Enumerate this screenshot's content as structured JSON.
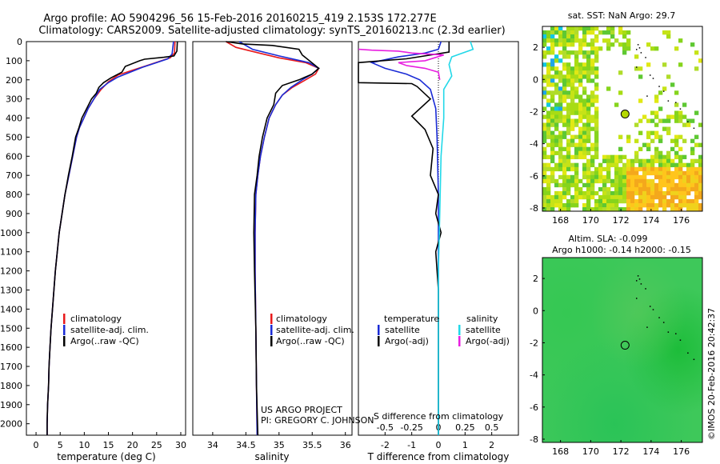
{
  "header": {
    "line1": "Argo profile: AO 5904296_56 15-Feb-2016 20160215_419 2.153S 172.277E",
    "line2": "Climatology: CARS2009. Satellite-adjusted climatology: synTS_20160213.nc (2.3d earlier)"
  },
  "colors": {
    "clim": "#e8191b",
    "sat": "#1a2bd6",
    "argo": "#000000",
    "sat_s": "#22d8e8",
    "argo_s": "#e81ee0"
  },
  "depth_axis": {
    "ticks": [
      0,
      100,
      200,
      300,
      400,
      500,
      600,
      700,
      800,
      900,
      1000,
      1100,
      1200,
      1300,
      1400,
      1500,
      1600,
      1700,
      1800,
      1900,
      2000
    ],
    "range": [
      0,
      2060
    ]
  },
  "chart_data": [
    {
      "type": "line",
      "id": "temperature",
      "xlabel": "temperature (deg C)",
      "xlim": [
        -2,
        31
      ],
      "xticks": [
        0,
        5,
        10,
        15,
        20,
        25,
        30
      ],
      "ylim": [
        0,
        2060
      ],
      "legend": [
        "climatology",
        "satellite-adj. clim.",
        "Argo(..raw -QC)"
      ],
      "series": [
        {
          "name": "climatology",
          "color_key": "clim",
          "points": [
            [
              28.8,
              0
            ],
            [
              28.7,
              60
            ],
            [
              27.8,
              85
            ],
            [
              26,
              100
            ],
            [
              23,
              125
            ],
            [
              20,
              150
            ],
            [
              17,
              175
            ],
            [
              15,
              210
            ],
            [
              13.5,
              250
            ],
            [
              12,
              300
            ],
            [
              10.8,
              350
            ],
            [
              9.9,
              400
            ],
            [
              9,
              450
            ],
            [
              8.4,
              500
            ],
            [
              7.6,
              600
            ],
            [
              6.8,
              700
            ],
            [
              6,
              800
            ],
            [
              5.4,
              900
            ],
            [
              4.8,
              1000
            ],
            [
              4.4,
              1100
            ],
            [
              4,
              1200
            ],
            [
              3.7,
              1300
            ],
            [
              3.4,
              1400
            ],
            [
              3.1,
              1500
            ],
            [
              2.9,
              1600
            ],
            [
              2.7,
              1700
            ],
            [
              2.6,
              1800
            ],
            [
              2.4,
              1900
            ],
            [
              2.3,
              2000
            ],
            [
              2.3,
              2060
            ]
          ]
        },
        {
          "name": "satellite-adj. clim.",
          "color_key": "sat",
          "points": [
            [
              28.5,
              0
            ],
            [
              28.2,
              65
            ],
            [
              27.3,
              90
            ],
            [
              25,
              110
            ],
            [
              22,
              135
            ],
            [
              19.5,
              160
            ],
            [
              17,
              185
            ],
            [
              15,
              215
            ],
            [
              13.2,
              250
            ],
            [
              12,
              300
            ],
            [
              10.8,
              350
            ],
            [
              9.9,
              400
            ],
            [
              9,
              450
            ],
            [
              8.4,
              500
            ],
            [
              7.6,
              600
            ],
            [
              6.8,
              700
            ],
            [
              6,
              800
            ],
            [
              5.4,
              900
            ],
            [
              4.8,
              1000
            ],
            [
              4.4,
              1100
            ],
            [
              4,
              1200
            ],
            [
              3.7,
              1300
            ],
            [
              3.4,
              1400
            ],
            [
              3.1,
              1500
            ],
            [
              2.9,
              1600
            ],
            [
              2.7,
              1700
            ],
            [
              2.6,
              1800
            ],
            [
              2.4,
              1900
            ],
            [
              2.3,
              2000
            ],
            [
              2.3,
              2060
            ]
          ]
        },
        {
          "name": "Argo(..raw -QC)",
          "color_key": "argo",
          "points": [
            [
              29.3,
              0
            ],
            [
              29.2,
              50
            ],
            [
              28.6,
              75
            ],
            [
              26.5,
              82
            ],
            [
              22.5,
              92
            ],
            [
              21.5,
              100
            ],
            [
              18.5,
              130
            ],
            [
              17.8,
              160
            ],
            [
              15.5,
              190
            ],
            [
              14,
              215
            ],
            [
              13,
              240
            ],
            [
              12.5,
              270
            ],
            [
              11.5,
              300
            ],
            [
              10.5,
              350
            ],
            [
              9.5,
              400
            ],
            [
              8.9,
              450
            ],
            [
              8.2,
              500
            ],
            [
              7.5,
              600
            ],
            [
              6.7,
              700
            ],
            [
              6,
              800
            ],
            [
              5.4,
              900
            ],
            [
              4.8,
              1000
            ],
            [
              4.4,
              1100
            ],
            [
              4,
              1200
            ],
            [
              3.7,
              1300
            ],
            [
              3.4,
              1400
            ],
            [
              3.1,
              1500
            ],
            [
              2.9,
              1600
            ],
            [
              2.7,
              1700
            ],
            [
              2.6,
              1800
            ],
            [
              2.4,
              1900
            ],
            [
              2.3,
              2000
            ],
            [
              2.3,
              2060
            ]
          ]
        }
      ]
    },
    {
      "type": "line",
      "id": "salinity",
      "xlabel": "salinity",
      "xlim": [
        33.7,
        36.1
      ],
      "xticks": [
        34,
        34.5,
        35,
        35.5,
        36
      ],
      "ylim": [
        0,
        2060
      ],
      "legend": [
        "climatology",
        "satellite-adj. clim.",
        "Argo(..raw -QC)"
      ],
      "credit_line1": "US ARGO PROJECT",
      "credit_line2": "PI: GREGORY C. JOHNSON",
      "series": [
        {
          "name": "climatology",
          "color_key": "clim",
          "points": [
            [
              34.2,
              0
            ],
            [
              34.35,
              30
            ],
            [
              34.7,
              60
            ],
            [
              35,
              85
            ],
            [
              35.4,
              110
            ],
            [
              35.6,
              140
            ],
            [
              35.55,
              170
            ],
            [
              35.4,
              200
            ],
            [
              35.2,
              240
            ],
            [
              35.05,
              280
            ],
            [
              34.95,
              330
            ],
            [
              34.85,
              400
            ],
            [
              34.78,
              500
            ],
            [
              34.72,
              600
            ],
            [
              34.68,
              700
            ],
            [
              34.65,
              800
            ],
            [
              34.64,
              1000
            ],
            [
              34.64,
              1200
            ],
            [
              34.65,
              1500
            ],
            [
              34.66,
              1800
            ],
            [
              34.67,
              2060
            ]
          ]
        },
        {
          "name": "satellite-adj. clim.",
          "color_key": "sat",
          "points": [
            [
              34.4,
              0
            ],
            [
              34.6,
              40
            ],
            [
              35,
              75
            ],
            [
              35.45,
              110
            ],
            [
              35.6,
              140
            ],
            [
              35.5,
              170
            ],
            [
              35.35,
              200
            ],
            [
              35.18,
              240
            ],
            [
              35.05,
              280
            ],
            [
              34.95,
              330
            ],
            [
              34.85,
              400
            ],
            [
              34.78,
              500
            ],
            [
              34.72,
              600
            ],
            [
              34.68,
              700
            ],
            [
              34.65,
              800
            ],
            [
              34.64,
              1000
            ],
            [
              34.64,
              1200
            ],
            [
              34.65,
              1500
            ],
            [
              34.66,
              1800
            ],
            [
              34.67,
              2060
            ]
          ]
        },
        {
          "name": "Argo(..raw -QC)",
          "color_key": "argo",
          "points": [
            [
              34.2,
              0
            ],
            [
              34.45,
              12
            ],
            [
              34.9,
              20
            ],
            [
              35.3,
              40
            ],
            [
              35.35,
              70
            ],
            [
              35.6,
              140
            ],
            [
              35.5,
              170
            ],
            [
              35.3,
              200
            ],
            [
              35.05,
              230
            ],
            [
              34.95,
              270
            ],
            [
              34.92,
              330
            ],
            [
              34.82,
              400
            ],
            [
              34.75,
              500
            ],
            [
              34.7,
              600
            ],
            [
              34.67,
              700
            ],
            [
              34.63,
              800
            ],
            [
              34.62,
              1000
            ],
            [
              34.63,
              1200
            ],
            [
              34.65,
              1500
            ],
            [
              34.66,
              1800
            ],
            [
              34.68,
              2060
            ]
          ]
        }
      ]
    },
    {
      "type": "line",
      "id": "difference",
      "xlabel": "T difference from climatology",
      "xlabel_top": "S difference from climatology",
      "xlim": [
        -3,
        3
      ],
      "xticks": [
        -2,
        -1,
        0,
        1,
        2
      ],
      "xticks_top": [
        "-0.5",
        "-0.25",
        "0",
        "0.25",
        "0.5"
      ],
      "ylim": [
        0,
        2060
      ],
      "legend_t_title": "temperature",
      "legend_s_title": "salinity",
      "legend_t": [
        "satellite",
        "Argo(-adj)"
      ],
      "legend_s": [
        "satellite",
        "Argo(-adj)"
      ],
      "series": [
        {
          "name": "T satellite",
          "color_key": "sat",
          "points": [
            [
              0.1,
              0
            ],
            [
              0,
              40
            ],
            [
              -0.5,
              60
            ],
            [
              -1.5,
              80
            ],
            [
              -2.5,
              110
            ],
            [
              -2,
              140
            ],
            [
              -1.2,
              170
            ],
            [
              -0.7,
              200
            ],
            [
              -0.3,
              250
            ],
            [
              -0.1,
              350
            ],
            [
              -0.05,
              500
            ],
            [
              0,
              800
            ],
            [
              0,
              1200
            ],
            [
              0,
              1600
            ],
            [
              0,
              2060
            ]
          ]
        },
        {
          "name": "T Argo(-adj)",
          "color_key": "argo",
          "points": [
            [
              0.4,
              0
            ],
            [
              0.4,
              55
            ],
            [
              -1.2,
              90
            ],
            [
              -3,
              110
            ],
            [
              -3,
              215
            ],
            [
              -1,
              220
            ],
            [
              -0.8,
              235
            ],
            [
              -0.3,
              300
            ],
            [
              -1,
              390
            ],
            [
              -0.5,
              460
            ],
            [
              -0.2,
              560
            ],
            [
              -0.3,
              700
            ],
            [
              0,
              800
            ],
            [
              -0.1,
              900
            ],
            [
              0.1,
              1000
            ],
            [
              -0.1,
              1100
            ],
            [
              0,
              1300
            ],
            [
              0,
              1500
            ],
            [
              0,
              1700
            ],
            [
              0,
              1900
            ],
            [
              0,
              2060
            ]
          ]
        },
        {
          "name": "S satellite",
          "color_key": "sat_s",
          "points": [
            [
              1.2,
              0
            ],
            [
              1.3,
              40
            ],
            [
              0.5,
              80
            ],
            [
              0.4,
              120
            ],
            [
              0.5,
              180
            ],
            [
              0.2,
              250
            ],
            [
              0.2,
              400
            ],
            [
              0.1,
              600
            ],
            [
              0.05,
              900
            ],
            [
              0,
              1200
            ],
            [
              0,
              1600
            ],
            [
              0,
              2060
            ]
          ]
        },
        {
          "name": "S Argo(-adj)",
          "color_key": "argo_s",
          "points": [
            [
              -3,
              40
            ],
            [
              -2.5,
              45
            ],
            [
              -1.5,
              50
            ],
            [
              -1,
              60
            ],
            [
              0.2,
              70
            ],
            [
              -0.5,
              100
            ],
            [
              -1.5,
              110
            ],
            [
              -1.2,
              125
            ],
            [
              -0.5,
              140
            ],
            [
              0,
              160
            ],
            [
              0.05,
              200
            ]
          ]
        }
      ]
    },
    {
      "type": "heatmap",
      "id": "sst_map",
      "title": "sat. SST: NaN Argo: 29.7",
      "xticks": [
        168,
        170,
        172,
        174,
        176
      ],
      "yticks": [
        2,
        0,
        -2,
        -4,
        -6,
        -8
      ],
      "xlim": [
        166.8,
        177.4
      ],
      "ylim": [
        -8.2,
        3.3
      ],
      "float_lon": 172.277,
      "float_lat": -2.153
    },
    {
      "type": "heatmap",
      "id": "sla_map",
      "title_line1": "Altim. SLA: -0.099",
      "title_line2": "Argo h1000: -0.14 h2000: -0.15",
      "xticks": [
        168,
        170,
        172,
        174,
        176
      ],
      "yticks": [
        2,
        0,
        -2,
        -4,
        -6,
        -8
      ],
      "xlim": [
        166.8,
        177.4
      ],
      "ylim": [
        -8.2,
        3.3
      ],
      "float_lon": 172.277,
      "float_lat": -2.153,
      "credit": "©IMOS 20-Feb-2016 20:42:37"
    }
  ]
}
